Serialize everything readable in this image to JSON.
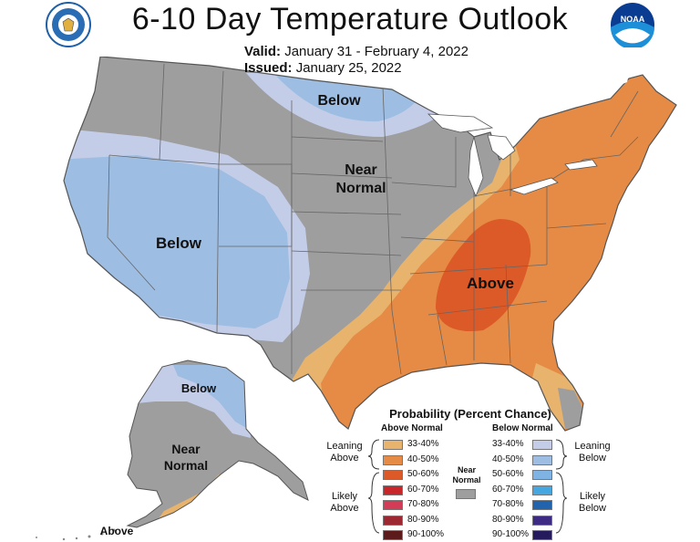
{
  "title": "6-10 Day Temperature Outlook",
  "valid_label": "Valid:",
  "valid_value": "January 31 - February 4, 2022",
  "issued_label": "Issued:",
  "issued_value": "January 25, 2022",
  "logos": {
    "left": "department-of-commerce-seal",
    "right": "noaa-logo",
    "right_text": "NOAA"
  },
  "map_labels": {
    "below_north": "Below",
    "near_normal_1": "Near",
    "near_normal_2": "Normal",
    "below_west": "Below",
    "above_southeast": "Above",
    "ak_below": "Below",
    "ak_near_1": "Near",
    "ak_near_2": "Normal",
    "ak_above": "Above"
  },
  "colors": {
    "near_normal": "#9e9e9e",
    "below_33_40": "#c4cde8",
    "below_40_50": "#9dbde2",
    "above_33_40": "#e8b36c",
    "above_40_50": "#e58b45",
    "above_50_60": "#dc5a28"
  },
  "legend": {
    "title": "Probability (Percent Chance)",
    "above_header": "Above Normal",
    "below_header": "Below Normal",
    "near_label_1": "Near",
    "near_label_2": "Normal",
    "leaning_above_1": "Leaning",
    "leaning_above_2": "Above",
    "likely_above_1": "Likely",
    "likely_above_2": "Above",
    "leaning_below_1": "Leaning",
    "leaning_below_2": "Below",
    "likely_below_1": "Likely",
    "likely_below_2": "Below",
    "above": [
      {
        "range": "33-40%",
        "color": "#e8b36c"
      },
      {
        "range": "40-50%",
        "color": "#e58b45"
      },
      {
        "range": "50-60%",
        "color": "#dc5a28"
      },
      {
        "range": "60-70%",
        "color": "#c8262a"
      },
      {
        "range": "70-80%",
        "color": "#d33c56"
      },
      {
        "range": "80-90%",
        "color": "#9e2832"
      },
      {
        "range": "90-100%",
        "color": "#5c1a1a"
      }
    ],
    "below": [
      {
        "range": "33-40%",
        "color": "#c4cde8"
      },
      {
        "range": "40-50%",
        "color": "#9dbde2"
      },
      {
        "range": "50-60%",
        "color": "#7fb3e4"
      },
      {
        "range": "60-70%",
        "color": "#46a6e0"
      },
      {
        "range": "70-80%",
        "color": "#2164ad"
      },
      {
        "range": "80-90%",
        "color": "#3d2a84"
      },
      {
        "range": "90-100%",
        "color": "#241a5c"
      }
    ],
    "near_color": "#9e9e9e"
  }
}
